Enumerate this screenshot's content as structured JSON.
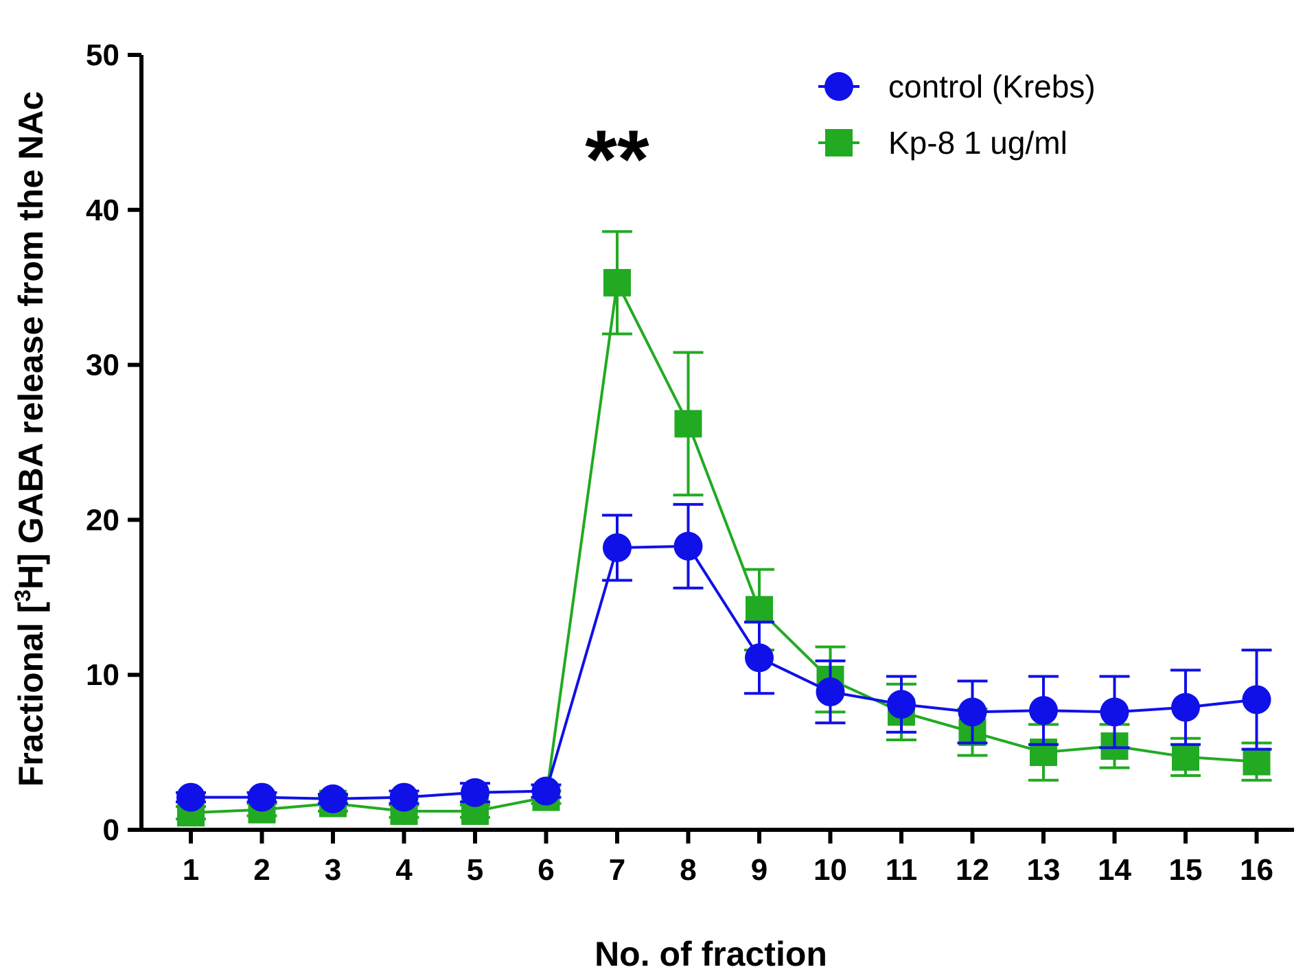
{
  "chart_data": {
    "type": "line",
    "title": "",
    "xlabel": "No. of fraction",
    "ylabel_pre": "Fractional [",
    "ylabel_sup": "3",
    "ylabel_post": "H] GABA release from the NAc",
    "x": [
      1,
      2,
      3,
      4,
      5,
      6,
      7,
      8,
      9,
      10,
      11,
      12,
      13,
      14,
      15,
      16
    ],
    "xticks": [
      "1",
      "2",
      "3",
      "4",
      "5",
      "6",
      "7",
      "8",
      "9",
      "10",
      "11",
      "12",
      "13",
      "14",
      "15",
      "16"
    ],
    "ylim": [
      0,
      50
    ],
    "yticks": [
      "0",
      "10",
      "20",
      "30",
      "40",
      "50"
    ],
    "grid": false,
    "legend_position": "top-right",
    "series": [
      {
        "name": "control (Krebs)",
        "color": "#1010e8",
        "marker": "circle",
        "values": [
          2.1,
          2.1,
          2.0,
          2.1,
          2.4,
          2.5,
          18.2,
          18.3,
          11.1,
          8.9,
          8.1,
          7.6,
          7.7,
          7.6,
          7.9,
          8.4
        ],
        "errors": [
          0.3,
          0.3,
          0.3,
          0.4,
          0.6,
          0.4,
          2.1,
          2.7,
          2.3,
          2.0,
          1.8,
          2.0,
          2.2,
          2.3,
          2.4,
          3.2
        ]
      },
      {
        "name": "Kp-8 1 ug/ml",
        "color": "#22aa22",
        "marker": "square",
        "values": [
          1.1,
          1.3,
          1.7,
          1.2,
          1.2,
          2.1,
          35.3,
          26.2,
          14.2,
          9.7,
          7.6,
          6.3,
          5.0,
          5.4,
          4.7,
          4.4
        ],
        "errors": [
          0.4,
          0.4,
          0.5,
          0.4,
          0.4,
          0.4,
          3.3,
          4.6,
          2.6,
          2.1,
          1.8,
          1.5,
          1.8,
          1.4,
          1.2,
          1.2
        ]
      }
    ],
    "annotations": [
      {
        "text": "**",
        "x": 7.0,
        "y": 43.5
      }
    ]
  }
}
